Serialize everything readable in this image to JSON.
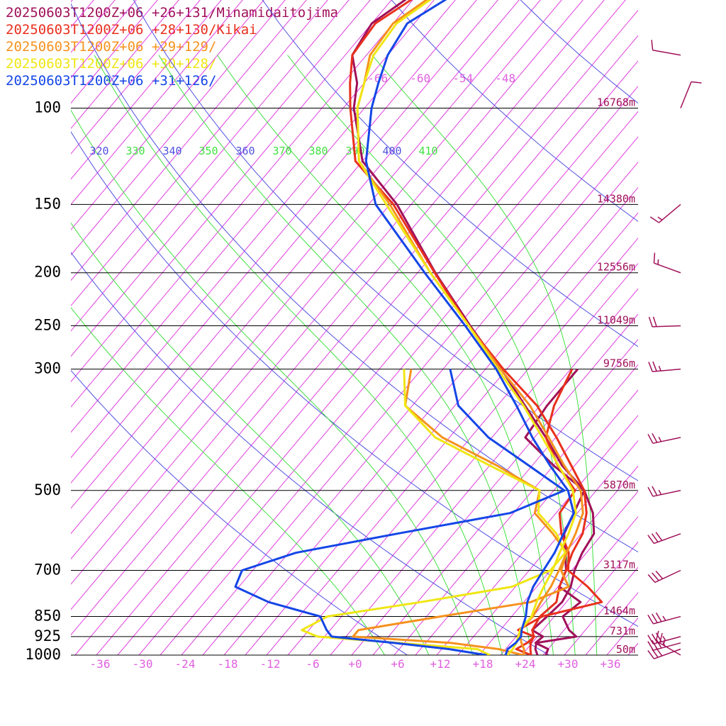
{
  "legend": [
    {
      "label": "20250603T1200Z+06 +26+131/Minamidaitojima",
      "color": "#a0105a"
    },
    {
      "label": "20250603T1200Z+06 +28+130/Kikai",
      "color": "#e8301e"
    },
    {
      "label": "20250603T1200Z+06 +29+129/",
      "color": "#f5921e"
    },
    {
      "label": "20250603T1200Z+06 +30+128/",
      "color": "#f0e614"
    },
    {
      "label": "20250603T1200Z+06 +31+126/",
      "color": "#1446e6"
    }
  ],
  "chart_data": {
    "type": "line",
    "pressure_labels": [
      "100",
      "150",
      "200",
      "250",
      "300",
      "500",
      "700",
      "850",
      "925",
      "1000"
    ],
    "pressure_levels": [
      100,
      150,
      200,
      250,
      300,
      500,
      700,
      850,
      925,
      1000
    ],
    "height_labels": [
      "16768m",
      "14380m",
      "12556m",
      "11049m",
      "9756m",
      "5870m",
      "3117m",
      "1464m",
      "731m",
      "50m"
    ],
    "temperature_ticks": [
      "-36",
      "-30",
      "-24",
      "-18",
      "-12",
      "-6",
      "+0",
      "+6",
      "+12",
      "+18",
      "+24",
      "+30",
      "+36"
    ],
    "temperature_values": [
      -36,
      -30,
      -24,
      -18,
      -12,
      -6,
      0,
      6,
      12,
      18,
      24,
      30,
      36
    ],
    "top_temperature_labels": [
      "-66",
      "-60",
      "-54",
      "-48"
    ],
    "theta_labels": [
      "320",
      "340",
      "360",
      "400"
    ],
    "theta_e_labels": [
      "330",
      "350",
      "370",
      "380",
      "390",
      "410"
    ],
    "colors": {
      "isotherm": "#e040e0",
      "theta": "#5050e0",
      "theta_e": "#40e040",
      "isobar": "#000000",
      "label": "#e060e0",
      "height": "#a0105a",
      "barb": "#a0105a"
    },
    "series": [
      {
        "name": "20250603T1200Z+06 +26+131/Minamidaitojima",
        "color": "#a0105a",
        "temperature": [
          [
            1000,
            26.4
          ],
          [
            975,
            26.0
          ],
          [
            950,
            23.5
          ],
          [
            925,
            23.8
          ],
          [
            900,
            21.5
          ],
          [
            850,
            22.0
          ],
          [
            800,
            22.4
          ],
          [
            750,
            21.8
          ],
          [
            700,
            20.4
          ],
          [
            650,
            19.4
          ],
          [
            600,
            18.8
          ],
          [
            550,
            16.2
          ],
          [
            500,
            12.3
          ],
          [
            450,
            6.2
          ],
          [
            400,
            0.6
          ],
          [
            350,
            -6.1
          ],
          [
            300,
            -13.8
          ],
          [
            250,
            -23.3
          ],
          [
            200,
            -34.5
          ],
          [
            150,
            -48.0
          ],
          [
            125,
            -58.0
          ],
          [
            100,
            -65.5
          ],
          [
            90,
            -68.0
          ],
          [
            80,
            -72.0
          ],
          [
            70,
            -73.0
          ],
          [
            60,
            -70.0
          ],
          [
            50,
            -66.0
          ],
          [
            40,
            -62.0
          ]
        ],
        "dewpoint": [
          [
            1000,
            25.2
          ],
          [
            975,
            24.2
          ],
          [
            950,
            23.6
          ],
          [
            925,
            28.5
          ],
          [
            900,
            26.7
          ],
          [
            850,
            24.2
          ],
          [
            800,
            25.0
          ],
          [
            750,
            20.2
          ],
          [
            700,
            19.2
          ],
          [
            650,
            17.0
          ],
          [
            600,
            14.6
          ],
          [
            550,
            13.5
          ],
          [
            500,
            12.3
          ],
          [
            450,
            5.0
          ],
          [
            400,
            -2.3
          ],
          [
            350,
            -3.0
          ],
          [
            300,
            -3.0
          ]
        ]
      },
      {
        "name": "20250603T1200Z+06 +28+130/Kikai",
        "color": "#e8301e",
        "temperature": [
          [
            1000,
            24.3
          ],
          [
            975,
            23.5
          ],
          [
            950,
            22.8
          ],
          [
            925,
            22.5
          ],
          [
            900,
            21.5
          ],
          [
            850,
            21.0
          ],
          [
            800,
            21.6
          ],
          [
            750,
            20.2
          ],
          [
            700,
            19.2
          ],
          [
            650,
            18.0
          ],
          [
            600,
            17.2
          ],
          [
            550,
            15.3
          ],
          [
            500,
            12.3
          ],
          [
            450,
            7.5
          ],
          [
            400,
            2.1
          ],
          [
            350,
            -4.4
          ],
          [
            300,
            -13.5
          ],
          [
            250,
            -23.5
          ],
          [
            200,
            -34.6
          ],
          [
            150,
            -48.5
          ],
          [
            125,
            -59.0
          ],
          [
            100,
            -66.0
          ],
          [
            90,
            -69.0
          ],
          [
            80,
            -72.0
          ],
          [
            70,
            -72.5
          ],
          [
            60,
            -69.0
          ],
          [
            50,
            -65.0
          ],
          [
            40,
            -60.0
          ]
        ],
        "dewpoint": [
          [
            1000,
            24.3
          ],
          [
            975,
            21.5
          ],
          [
            950,
            22.3
          ],
          [
            925,
            22.6
          ],
          [
            900,
            19.5
          ],
          [
            850,
            21.3
          ],
          [
            800,
            28.0
          ],
          [
            750,
            24.2
          ],
          [
            700,
            19.5
          ],
          [
            650,
            17.5
          ],
          [
            600,
            14.2
          ],
          [
            550,
            11.5
          ],
          [
            500,
            11.0
          ],
          [
            450,
            5.6
          ],
          [
            400,
            0.6
          ],
          [
            350,
            -2.0
          ],
          [
            300,
            -3.8
          ]
        ]
      },
      {
        "name": "20250603T1200Z+06 +29+129/",
        "color": "#f5921e",
        "temperature": [
          [
            1000,
            23.3
          ],
          [
            975,
            22.6
          ],
          [
            950,
            21.5
          ],
          [
            925,
            20.6
          ],
          [
            900,
            19.8
          ],
          [
            850,
            20.0
          ],
          [
            800,
            19.4
          ],
          [
            750,
            19.0
          ],
          [
            700,
            18.2
          ],
          [
            650,
            17.2
          ],
          [
            600,
            16.2
          ],
          [
            550,
            14.8
          ],
          [
            500,
            11.8
          ],
          [
            450,
            6.5
          ],
          [
            400,
            1.0
          ],
          [
            350,
            -5.4
          ],
          [
            300,
            -13.9
          ],
          [
            250,
            -23.5
          ],
          [
            200,
            -35.2
          ],
          [
            150,
            -49.0
          ],
          [
            125,
            -58.5
          ],
          [
            100,
            -65.0
          ],
          [
            90,
            -67.0
          ],
          [
            80,
            -69.5
          ],
          [
            70,
            -70.0
          ],
          [
            60,
            -67.0
          ],
          [
            50,
            -63.0
          ],
          [
            40,
            -58.0
          ]
        ],
        "dewpoint": [
          [
            1000,
            23.2
          ],
          [
            975,
            19.0
          ],
          [
            950,
            11.5
          ],
          [
            925,
            -3.0
          ],
          [
            900,
            -3.0
          ],
          [
            850,
            7.0
          ],
          [
            800,
            18.0
          ],
          [
            750,
            21.5
          ],
          [
            700,
            18.5
          ],
          [
            650,
            17.2
          ],
          [
            600,
            13.0
          ],
          [
            550,
            8.0
          ],
          [
            500,
            6.0
          ],
          [
            450,
            -3.0
          ],
          [
            400,
            -14.0
          ],
          [
            350,
            -23.0
          ],
          [
            300,
            -26.5
          ]
        ]
      },
      {
        "name": "20250603T1200Z+06 +30+128/",
        "color": "#f0e614",
        "temperature": [
          [
            1000,
            21.0
          ],
          [
            975,
            21.0
          ],
          [
            950,
            20.8
          ],
          [
            925,
            20.3
          ],
          [
            900,
            19.8
          ],
          [
            850,
            19.8
          ],
          [
            800,
            18.8
          ],
          [
            750,
            18.0
          ],
          [
            700,
            17.3
          ],
          [
            650,
            16.2
          ],
          [
            600,
            15.2
          ],
          [
            550,
            13.8
          ],
          [
            500,
            10.7
          ],
          [
            450,
            5.7
          ],
          [
            400,
            0.1
          ],
          [
            350,
            -6.3
          ],
          [
            300,
            -14.3
          ],
          [
            250,
            -23.5
          ],
          [
            200,
            -35.2
          ],
          [
            150,
            -49.5
          ],
          [
            125,
            -58.5
          ],
          [
            100,
            -65.0
          ],
          [
            90,
            -67.0
          ],
          [
            80,
            -69.0
          ],
          [
            70,
            -69.5
          ],
          [
            60,
            -66.5
          ],
          [
            50,
            -63.0
          ],
          [
            40,
            -58.0
          ]
        ],
        "dewpoint": [
          [
            1000,
            18.5
          ],
          [
            975,
            16.0
          ],
          [
            950,
            4.0
          ],
          [
            925,
            -8.0
          ],
          [
            900,
            -11.0
          ],
          [
            850,
            -9.0
          ],
          [
            800,
            2.5
          ],
          [
            750,
            13.5
          ],
          [
            700,
            17.0
          ],
          [
            650,
            17.0
          ],
          [
            600,
            13.5
          ],
          [
            550,
            8.5
          ],
          [
            500,
            6.0
          ],
          [
            450,
            -4.0
          ],
          [
            400,
            -15.0
          ],
          [
            350,
            -23.0
          ],
          [
            300,
            -27.5
          ]
        ]
      },
      {
        "name": "20250603T1200Z+06 +31+126/",
        "color": "#1446e6",
        "temperature": [
          [
            1000,
            20.7
          ],
          [
            975,
            20.3
          ],
          [
            950,
            20.7
          ],
          [
            925,
            20.7
          ],
          [
            900,
            20.0
          ],
          [
            850,
            19.0
          ],
          [
            800,
            17.5
          ],
          [
            750,
            16.5
          ],
          [
            700,
            16.0
          ],
          [
            650,
            15.5
          ],
          [
            600,
            14.5
          ],
          [
            550,
            13.5
          ],
          [
            500,
            10.0
          ],
          [
            450,
            4.5
          ],
          [
            400,
            -1.3
          ],
          [
            350,
            -7.3
          ],
          [
            300,
            -14.5
          ],
          [
            250,
            -24.0
          ],
          [
            200,
            -36.0
          ],
          [
            150,
            -51.0
          ],
          [
            125,
            -57.5
          ],
          [
            100,
            -63.0
          ],
          [
            90,
            -65.0
          ],
          [
            80,
            -67.0
          ],
          [
            70,
            -68.0
          ],
          [
            60,
            -64.0
          ],
          [
            50,
            -60.0
          ],
          [
            40,
            -56.0
          ]
        ],
        "dewpoint": [
          [
            1000,
            18.0
          ],
          [
            975,
            12.0
          ],
          [
            950,
            3.5
          ],
          [
            925,
            -6.0
          ],
          [
            900,
            -7.5
          ],
          [
            850,
            -10.0
          ],
          [
            800,
            -19.0
          ],
          [
            750,
            -25.5
          ],
          [
            700,
            -26.5
          ],
          [
            650,
            -21.0
          ],
          [
            600,
            -9.0
          ],
          [
            550,
            4.5
          ],
          [
            500,
            9.5
          ],
          [
            450,
            1.5
          ],
          [
            400,
            -7.5
          ],
          [
            350,
            -15.5
          ],
          [
            300,
            -21.0
          ]
        ]
      }
    ],
    "wind_barbs": [
      {
        "pressure": 1000,
        "direction": 300,
        "speed": 25
      },
      {
        "pressure": 975,
        "direction": 250,
        "speed": 30
      },
      {
        "pressure": 950,
        "direction": 255,
        "speed": 35
      },
      {
        "pressure": 925,
        "direction": 255,
        "speed": 35
      },
      {
        "pressure": 850,
        "direction": 255,
        "speed": 35
      },
      {
        "pressure": 700,
        "direction": 245,
        "speed": 30
      },
      {
        "pressure": 600,
        "direction": 250,
        "speed": 30
      },
      {
        "pressure": 500,
        "direction": 258,
        "speed": 25
      },
      {
        "pressure": 400,
        "direction": 258,
        "speed": 25
      },
      {
        "pressure": 300,
        "direction": 265,
        "speed": 25
      },
      {
        "pressure": 250,
        "direction": 268,
        "speed": 20
      },
      {
        "pressure": 200,
        "direction": 290,
        "speed": 15
      },
      {
        "pressure": 150,
        "direction": 230,
        "speed": 15
      },
      {
        "pressure": 100,
        "direction": 22,
        "speed": 10
      },
      {
        "pressure": 80,
        "direction": 280,
        "speed": 10
      },
      {
        "pressure": 60,
        "direction": 290,
        "speed": 10
      }
    ]
  }
}
